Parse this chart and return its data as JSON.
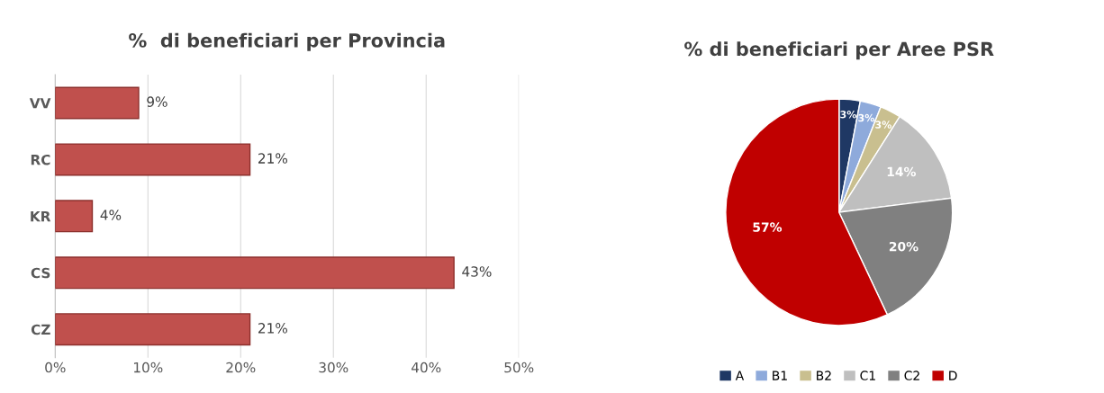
{
  "chart_data": [
    {
      "type": "bar",
      "orientation": "horizontal",
      "title": "%  di beneficiari per Provincia",
      "categories": [
        "VV",
        "RC",
        "KR",
        "CS",
        "CZ"
      ],
      "values": [
        9,
        21,
        4,
        43,
        21
      ],
      "value_labels": [
        "9%",
        "21%",
        "4%",
        "43%",
        "21%"
      ],
      "color": "#c0504d",
      "xlim": [
        0,
        50
      ],
      "xticks": [
        {
          "value": 0,
          "label": "0%"
        },
        {
          "value": 10,
          "label": "10%"
        },
        {
          "value": 20,
          "label": "20%"
        },
        {
          "value": 30,
          "label": "30%"
        },
        {
          "value": 40,
          "label": "40%"
        },
        {
          "value": 50,
          "label": "50%"
        }
      ],
      "grid": "x"
    },
    {
      "type": "pie",
      "title": "% di beneficiari per Aree PSR",
      "categories": [
        "A",
        "B1",
        "B2",
        "C1",
        "C2",
        "D"
      ],
      "values": [
        3,
        3,
        3,
        14,
        20,
        57
      ],
      "value_labels": [
        "3%",
        "3%",
        "3%",
        "14%",
        "20%",
        "57%"
      ],
      "colors": [
        "#1f3864",
        "#8eaadb",
        "#c9bf8f",
        "#bfbfbf",
        "#808080",
        "#c00000"
      ],
      "legend": "bottom"
    }
  ]
}
